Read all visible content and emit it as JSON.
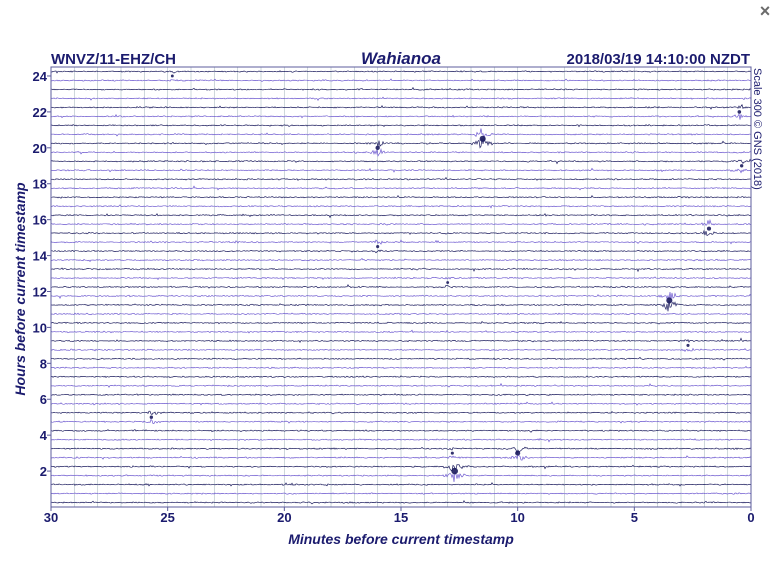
{
  "window": {
    "close_label": "×"
  },
  "colors": {
    "text": "#1b1b6e",
    "trace_dark": "#1c1c5e",
    "trace_light": "#6f5bd0",
    "grid": "#b9c6cc",
    "frame": "#5c5c9c"
  },
  "chart_data": {
    "type": "line",
    "station": "WNVZ/11-EHZ/CH",
    "title": "Wahianoa",
    "timestamp": "2018/03/19 14:10:00 NZDT",
    "xlabel": "Minutes before current timestamp",
    "ylabel": "Hours before current timestamp",
    "scale_note": "Scale 300 © GNS (2018)",
    "xlim": [
      30,
      0
    ],
    "ylim": [
      0,
      24.5
    ],
    "x_ticks": [
      30,
      25,
      20,
      15,
      10,
      5,
      0
    ],
    "y_ticks": [
      2,
      4,
      6,
      8,
      10,
      12,
      14,
      16,
      18,
      20,
      22,
      24
    ],
    "traces_per_hour": 2,
    "trace_colors": [
      "dark",
      "light"
    ],
    "grid": true,
    "events": [
      {
        "hours_before": 24.0,
        "minutes_before": 24.8,
        "amplitude": 0.25
      },
      {
        "hours_before": 20.5,
        "minutes_before": 11.5,
        "amplitude": 0.9
      },
      {
        "hours_before": 20.0,
        "minutes_before": 16.0,
        "amplitude": 0.55
      },
      {
        "hours_before": 22.0,
        "minutes_before": 0.5,
        "amplitude": 0.4
      },
      {
        "hours_before": 19.0,
        "minutes_before": 0.4,
        "amplitude": 0.35
      },
      {
        "hours_before": 15.5,
        "minutes_before": 1.8,
        "amplitude": 0.5
      },
      {
        "hours_before": 14.5,
        "minutes_before": 16.0,
        "amplitude": 0.3
      },
      {
        "hours_before": 11.5,
        "minutes_before": 3.5,
        "amplitude": 0.9
      },
      {
        "hours_before": 12.5,
        "minutes_before": 13.0,
        "amplitude": 0.25
      },
      {
        "hours_before": 9.0,
        "minutes_before": 2.7,
        "amplitude": 0.3
      },
      {
        "hours_before": 5.0,
        "minutes_before": 25.7,
        "amplitude": 0.35
      },
      {
        "hours_before": 3.0,
        "minutes_before": 10.0,
        "amplitude": 0.7
      },
      {
        "hours_before": 2.0,
        "minutes_before": 12.7,
        "amplitude": 1.0
      },
      {
        "hours_before": 3.0,
        "minutes_before": 12.8,
        "amplitude": 0.3
      }
    ]
  }
}
